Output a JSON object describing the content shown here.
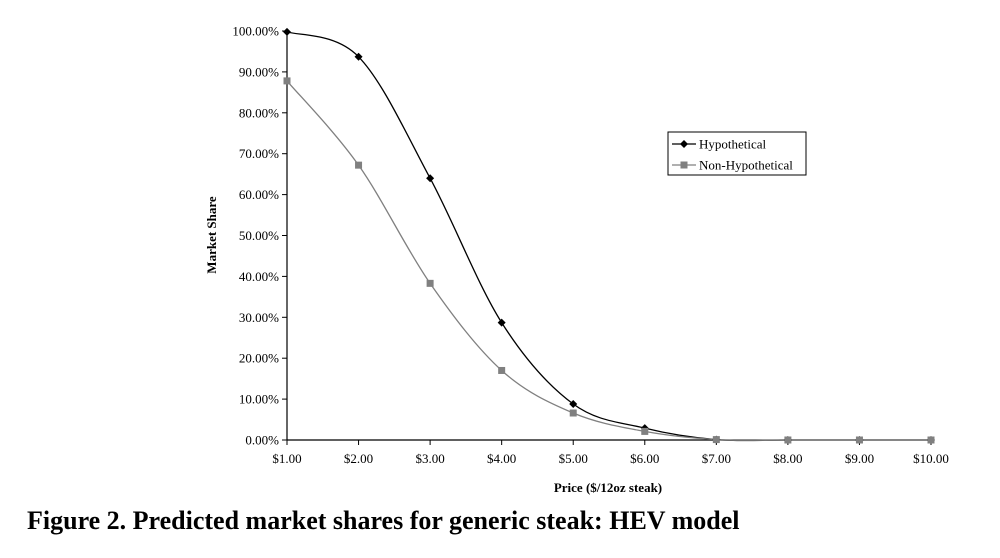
{
  "caption": {
    "text": "Figure  2.  Predicted market shares for generic steak: HEV model"
  },
  "chart_data": {
    "type": "line",
    "title": "",
    "xlabel": "Price ($/12oz steak)",
    "ylabel": "Market Share",
    "categories": [
      "$1.00",
      "$2.00",
      "$3.00",
      "$4.00",
      "$5.00",
      "$6.00",
      "$7.00",
      "$8.00",
      "$9.00",
      "$10.00"
    ],
    "x": [
      1,
      2,
      3,
      4,
      5,
      6,
      7,
      8,
      9,
      10
    ],
    "y_ticks": [
      "0.00%",
      "10.00%",
      "20.00%",
      "30.00%",
      "40.00%",
      "50.00%",
      "60.00%",
      "70.00%",
      "80.00%",
      "90.00%",
      "100.00%"
    ],
    "ylim": [
      0,
      100
    ],
    "xlim": [
      1,
      10
    ],
    "grid": false,
    "legend_position": "upper-right",
    "series": [
      {
        "name": "Hypothetical",
        "marker": "diamond",
        "color": "#000000",
        "values": [
          99.8,
          93.7,
          64.0,
          28.7,
          8.8,
          2.9,
          0.1,
          0.0,
          0.0,
          0.0
        ]
      },
      {
        "name": "Non-Hypothetical",
        "marker": "square",
        "color": "#808080",
        "values": [
          87.8,
          67.2,
          38.3,
          17.0,
          6.6,
          2.1,
          0.1,
          0.0,
          0.0,
          0.0
        ]
      }
    ]
  }
}
